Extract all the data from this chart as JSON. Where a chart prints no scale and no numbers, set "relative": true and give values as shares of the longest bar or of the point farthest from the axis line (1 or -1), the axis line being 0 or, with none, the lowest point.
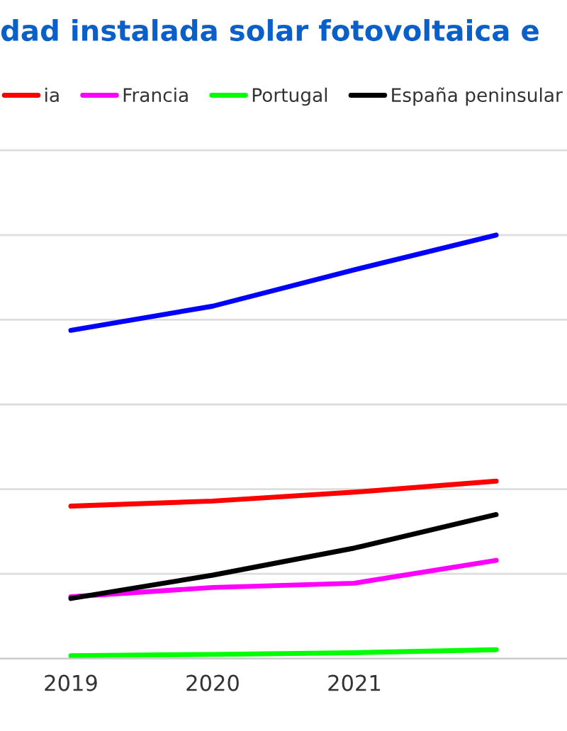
{
  "chart_data": {
    "type": "line",
    "title": "dad instalada solar fotovoltaica e",
    "relative": true,
    "categories": [
      "2019",
      "2020",
      "2021",
      null
    ],
    "series": [
      {
        "color": "#0000ff",
        "values": [
          0.775,
          0.832,
          0.918,
          1
        ]
      },
      {
        "name": "ia",
        "color": "#ff0000",
        "values": [
          0.36,
          0.372,
          0.393,
          0.419
        ]
      },
      {
        "name": "Francia",
        "color": "#ff00ff",
        "values": [
          0.146,
          0.168,
          0.178,
          0.232
        ]
      },
      {
        "name": "Portugal",
        "color": "#00ff00",
        "values": [
          0.007,
          0.01,
          0.014,
          0.021
        ]
      },
      {
        "name": "España peninsular",
        "color": "#000000",
        "values": [
          0.142,
          0.197,
          0.261,
          0.34
        ]
      }
    ],
    "grid": "y",
    "legend": "top",
    "marker": "none",
    "line_style": "solid"
  }
}
